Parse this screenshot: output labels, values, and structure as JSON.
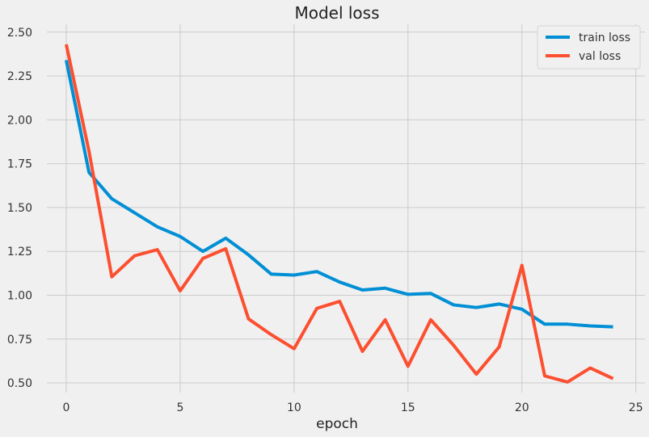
{
  "chart_data": {
    "type": "line",
    "title": "Model loss",
    "xlabel": "epoch",
    "ylabel": "",
    "xlim": [
      -0.85,
      25.4
    ],
    "ylim": [
      0.445,
      2.545
    ],
    "xticks": [
      0,
      5,
      10,
      15,
      20,
      25
    ],
    "yticks": [
      0.5,
      0.75,
      1.0,
      1.25,
      1.5,
      1.75,
      2.0,
      2.25,
      2.5
    ],
    "xtick_labels": [
      "0",
      "5",
      "10",
      "15",
      "20",
      "25"
    ],
    "ytick_labels": [
      "0.50",
      "0.75",
      "1.00",
      "1.25",
      "1.50",
      "1.75",
      "2.00",
      "2.25",
      "2.50"
    ],
    "grid": true,
    "legend_position": "top-right",
    "x": [
      0,
      1,
      2,
      3,
      4,
      5,
      6,
      7,
      8,
      9,
      10,
      11,
      12,
      13,
      14,
      15,
      16,
      17,
      18,
      19,
      20,
      21,
      22,
      23,
      24
    ],
    "series": [
      {
        "name": "train loss",
        "color": "#008fd5",
        "values": [
          2.34,
          1.7,
          1.55,
          1.47,
          1.39,
          1.335,
          1.25,
          1.325,
          1.23,
          1.12,
          1.115,
          1.135,
          1.075,
          1.03,
          1.04,
          1.005,
          1.01,
          0.945,
          0.93,
          0.95,
          0.92,
          0.835,
          0.835,
          0.825,
          0.82
        ]
      },
      {
        "name": "val loss",
        "color": "#fc4f30",
        "values": [
          2.43,
          1.82,
          1.105,
          1.225,
          1.26,
          1.025,
          1.21,
          1.265,
          0.865,
          0.775,
          0.695,
          0.925,
          0.965,
          0.68,
          0.86,
          0.595,
          0.86,
          0.715,
          0.55,
          0.705,
          1.17,
          0.54,
          0.505,
          0.585,
          0.525
        ]
      }
    ]
  }
}
